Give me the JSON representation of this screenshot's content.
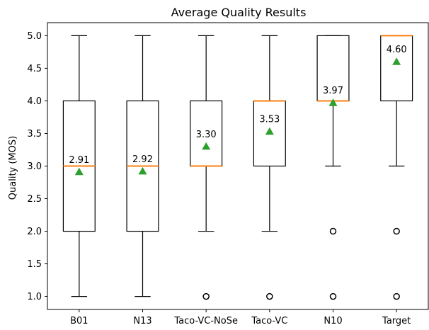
{
  "chart_data": {
    "type": "box",
    "title": "Average Quality Results",
    "xlabel": "",
    "ylabel": "Quality (MOS)",
    "ylim": [
      0.8,
      5.2
    ],
    "yticks": [
      "1.0",
      "1.5",
      "2.0",
      "2.5",
      "3.0",
      "3.5",
      "4.0",
      "4.5",
      "5.0"
    ],
    "categories": [
      "B01",
      "N13",
      "Taco-VC-NoSe",
      "Taco-VC",
      "N10",
      "Target"
    ],
    "boxes": [
      {
        "name": "B01",
        "whisker_low": 1.0,
        "q1": 2.0,
        "median": 3.0,
        "q3": 4.0,
        "whisker_high": 5.0,
        "mean": 2.91,
        "mean_label": "2.91",
        "fliers": []
      },
      {
        "name": "N13",
        "whisker_low": 1.0,
        "q1": 2.0,
        "median": 3.0,
        "q3": 4.0,
        "whisker_high": 5.0,
        "mean": 2.92,
        "mean_label": "2.92",
        "fliers": []
      },
      {
        "name": "Taco-VC-NoSe",
        "whisker_low": 2.0,
        "q1": 3.0,
        "median": 3.0,
        "q3": 4.0,
        "whisker_high": 5.0,
        "mean": 3.3,
        "mean_label": "3.30",
        "fliers": [
          1.0
        ]
      },
      {
        "name": "Taco-VC",
        "whisker_low": 2.0,
        "q1": 3.0,
        "median": 4.0,
        "q3": 4.0,
        "whisker_high": 5.0,
        "mean": 3.53,
        "mean_label": "3.53",
        "fliers": [
          1.0
        ]
      },
      {
        "name": "N10",
        "whisker_low": 3.0,
        "q1": 4.0,
        "median": 4.0,
        "q3": 5.0,
        "whisker_high": 5.0,
        "mean": 3.97,
        "mean_label": "3.97",
        "fliers": [
          2.0,
          1.0
        ]
      },
      {
        "name": "Target",
        "whisker_low": 3.0,
        "q1": 4.0,
        "median": 5.0,
        "q3": 5.0,
        "whisker_high": 5.0,
        "mean": 4.6,
        "mean_label": "4.60",
        "fliers": [
          2.0,
          1.0
        ]
      }
    ],
    "colors": {
      "median": "#ff7f0e",
      "mean": "#2ca02c",
      "box": "#000000"
    },
    "grid": false,
    "legend": "none"
  }
}
